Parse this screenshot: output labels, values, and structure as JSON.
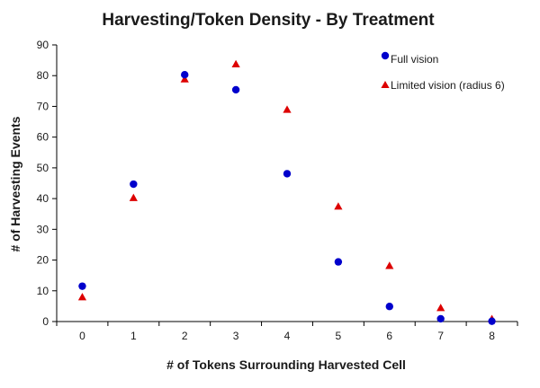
{
  "chart_data": {
    "type": "scatter",
    "title": "Harvesting/Token Density - By Treatment",
    "xlabel": "# of Tokens Surrounding Harvested Cell",
    "ylabel": "# of Harvesting Events",
    "xlim": [
      -0.5,
      8.5
    ],
    "ylim": [
      0,
      90
    ],
    "x_ticks": [
      0,
      1,
      2,
      3,
      4,
      5,
      6,
      7,
      8
    ],
    "y_ticks": [
      0,
      10,
      20,
      30,
      40,
      50,
      60,
      70,
      80,
      90
    ],
    "grid": false,
    "legend_position": "top-right",
    "series": [
      {
        "name": "Full vision",
        "marker": "circle",
        "color": "#0000cc",
        "x": [
          0,
          1,
          2,
          3,
          4,
          5,
          6,
          7,
          8
        ],
        "y": [
          11.5,
          44.7,
          80.3,
          75.4,
          48.1,
          19.4,
          4.9,
          0.9,
          0.1
        ]
      },
      {
        "name": "Limited vision (radius 6)",
        "marker": "triangle",
        "color": "#dd0000",
        "x": [
          0,
          1,
          2,
          3,
          4,
          5,
          6,
          7,
          8
        ],
        "y": [
          7.9,
          40.2,
          78.8,
          83.7,
          68.9,
          37.4,
          18.1,
          4.4,
          0.8
        ]
      }
    ]
  }
}
